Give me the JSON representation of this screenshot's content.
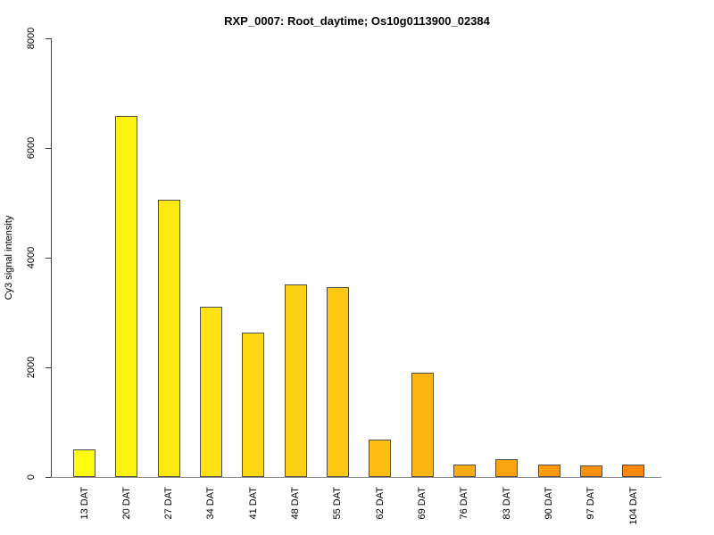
{
  "chart_data": {
    "type": "bar",
    "title": "RXP_0007: Root_daytime; Os10g0113900_02384",
    "xlabel": "",
    "ylabel": "Cy3 signal intensity",
    "categories": [
      "13 DAT",
      "20 DAT",
      "27 DAT",
      "34 DAT",
      "41 DAT",
      "48 DAT",
      "55 DAT",
      "62 DAT",
      "69 DAT",
      "76 DAT",
      "83 DAT",
      "90 DAT",
      "97 DAT",
      "104 DAT"
    ],
    "values": [
      500,
      6580,
      5060,
      3110,
      2640,
      3520,
      3470,
      680,
      1900,
      230,
      320,
      230,
      210,
      220
    ],
    "bar_colors": [
      "#FFFB0D",
      "#FEF310",
      "#FEEA12",
      "#FDE113",
      "#FDD813",
      "#FDD013",
      "#FDC713",
      "#FCBE13",
      "#FCB513",
      "#FCAC12",
      "#FCA311",
      "#FC9A10",
      "#FC910F",
      "#FC880E"
    ],
    "ylim": [
      0,
      8000
    ],
    "yticks": [
      0,
      2000,
      4000,
      6000,
      8000
    ],
    "grid": false,
    "legend": "none",
    "background_color": "#ffffff",
    "bar_border_color": "#4d4d4d",
    "axis_color": "#3f3f3f",
    "baseline_color": "#8f8f8f"
  }
}
